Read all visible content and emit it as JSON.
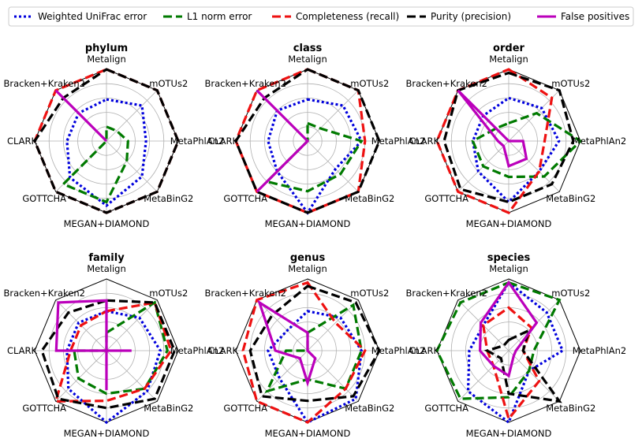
{
  "chart_data": {
    "type": "radar",
    "categories": [
      "Metalign",
      "mOTUs2",
      "MetaPhlAn2",
      "MetaBinG2",
      "MEGAN+DIAMOND",
      "GOTTCHA",
      "CLARK",
      "Bracken+Kraken2"
    ],
    "rlim": [
      0,
      1
    ],
    "grid_levels": [
      0.2,
      0.4,
      0.6,
      0.8,
      1.0
    ],
    "grid": true,
    "legend_position": "top",
    "series_meta": [
      {
        "name": "Weighted UniFrac error",
        "color": "#0000dd",
        "dash": "dotted"
      },
      {
        "name": "L1 norm error",
        "color": "#007a00",
        "dash": "dashed"
      },
      {
        "name": "Completeness (recall)",
        "color": "#ee1111",
        "dash": "dashed"
      },
      {
        "name": "Purity (precision)",
        "color": "#000000",
        "dash": "dashed"
      },
      {
        "name": "False positives",
        "color": "#bb00bb",
        "dash": "solid"
      }
    ],
    "panels": [
      {
        "title": "phylum",
        "series": [
          {
            "name": "Weighted UniFrac error",
            "values": [
              0.58,
              0.7,
              0.55,
              0.7,
              0.9,
              0.72,
              0.55,
              0.55
            ]
          },
          {
            "name": "L1 norm error",
            "values": [
              0.2,
              0.2,
              0.3,
              0.4,
              0.85,
              0.85,
              0.0,
              0.0
            ]
          },
          {
            "name": "Completeness (recall)",
            "values": [
              1.0,
              1.0,
              1.0,
              1.0,
              1.0,
              1.0,
              1.0,
              1.0
            ]
          },
          {
            "name": "Purity (precision)",
            "values": [
              1.0,
              1.0,
              1.0,
              1.0,
              1.0,
              1.0,
              1.0,
              0.85
            ]
          },
          {
            "name": "False positives",
            "values": [
              0.0,
              0.0,
              0.0,
              0.0,
              0.0,
              0.0,
              0.0,
              1.0
            ]
          }
        ]
      },
      {
        "title": "class",
        "series": [
          {
            "name": "Weighted UniFrac error",
            "values": [
              0.58,
              0.7,
              0.75,
              0.55,
              1.0,
              0.6,
              0.55,
              0.6
            ]
          },
          {
            "name": "L1 norm error",
            "values": [
              0.25,
              0.25,
              0.75,
              0.65,
              0.7,
              0.8,
              0.0,
              0.0
            ]
          },
          {
            "name": "Completeness (recall)",
            "values": [
              1.0,
              1.0,
              0.8,
              1.0,
              1.0,
              1.0,
              1.0,
              1.0
            ]
          },
          {
            "name": "Purity (precision)",
            "values": [
              1.0,
              1.0,
              1.0,
              1.0,
              1.0,
              1.0,
              1.0,
              0.85
            ]
          },
          {
            "name": "False positives",
            "values": [
              0.0,
              0.0,
              0.0,
              0.0,
              0.0,
              1.0,
              0.0,
              1.0
            ]
          }
        ]
      },
      {
        "title": "order",
        "series": [
          {
            "name": "Weighted UniFrac error",
            "values": [
              0.6,
              0.65,
              0.7,
              0.6,
              0.85,
              0.6,
              0.5,
              0.5
            ]
          },
          {
            "name": "L1 norm error",
            "values": [
              0.25,
              0.55,
              1.0,
              0.7,
              0.5,
              0.5,
              0.5,
              0.25
            ]
          },
          {
            "name": "Completeness (recall)",
            "values": [
              1.0,
              0.85,
              0.5,
              0.6,
              1.0,
              1.0,
              1.0,
              1.0
            ]
          },
          {
            "name": "Purity (precision)",
            "values": [
              0.95,
              1.0,
              0.9,
              0.85,
              0.85,
              0.95,
              0.9,
              1.0
            ]
          },
          {
            "name": "False positives",
            "values": [
              0.0,
              0.0,
              0.2,
              0.35,
              0.35,
              0.1,
              0.15,
              1.0
            ]
          }
        ]
      },
      {
        "title": "family",
        "series": [
          {
            "name": "Weighted UniFrac error",
            "values": [
              0.55,
              0.65,
              0.75,
              0.8,
              1.0,
              0.75,
              0.55,
              0.55
            ]
          },
          {
            "name": "L1 norm error",
            "values": [
              0.25,
              0.95,
              0.85,
              0.75,
              0.6,
              0.55,
              0.45,
              0.0
            ]
          },
          {
            "name": "Completeness (recall)",
            "values": [
              0.55,
              0.95,
              0.9,
              0.75,
              0.7,
              1.0,
              0.5,
              0.5
            ]
          },
          {
            "name": "Purity (precision)",
            "values": [
              0.7,
              0.95,
              0.95,
              0.95,
              0.8,
              0.95,
              0.9,
              0.75
            ]
          },
          {
            "name": "False positives",
            "values": [
              0.7,
              0.0,
              0.35,
              0.0,
              0.55,
              0.0,
              0.7,
              0.95
            ]
          }
        ]
      },
      {
        "title": "genus",
        "series": [
          {
            "name": "Weighted UniFrac error",
            "values": [
              0.55,
              0.65,
              0.75,
              0.95,
              1.0,
              0.55,
              0.55,
              0.4
            ]
          },
          {
            "name": "L1 norm error",
            "values": [
              0.25,
              0.9,
              0.75,
              0.75,
              0.4,
              0.8,
              0.3,
              0.0
            ]
          },
          {
            "name": "Completeness (recall)",
            "values": [
              0.95,
              0.55,
              0.8,
              0.75,
              1.0,
              1.0,
              0.9,
              1.0
            ]
          },
          {
            "name": "Purity (precision)",
            "values": [
              0.9,
              0.95,
              1.0,
              0.9,
              0.7,
              0.9,
              0.8,
              0.7
            ]
          },
          {
            "name": "False positives",
            "values": [
              0.25,
              0.0,
              0.0,
              0.15,
              0.45,
              0.15,
              0.45,
              0.95
            ]
          }
        ]
      },
      {
        "title": "species",
        "series": [
          {
            "name": "Weighted UniFrac error",
            "values": [
              0.95,
              0.75,
              0.75,
              0.4,
              1.0,
              0.8,
              0.55,
              0.5
            ]
          },
          {
            "name": "L1 norm error",
            "values": [
              0.95,
              1.0,
              0.35,
              0.4,
              0.65,
              0.95,
              1.0,
              0.95
            ]
          },
          {
            "name": "Completeness (recall)",
            "values": [
              0.6,
              0.45,
              0.2,
              0.6,
              0.95,
              0.3,
              0.3,
              0.5
            ]
          },
          {
            "name": "Purity (precision)",
            "values": [
              0.15,
              0.4,
              0.2,
              1.0,
              0.6,
              0.15,
              0.3,
              0.1
            ]
          },
          {
            "name": "False positives",
            "values": [
              0.95,
              0.55,
              0.1,
              0.1,
              0.35,
              0.3,
              0.4,
              0.55
            ]
          }
        ]
      }
    ]
  }
}
